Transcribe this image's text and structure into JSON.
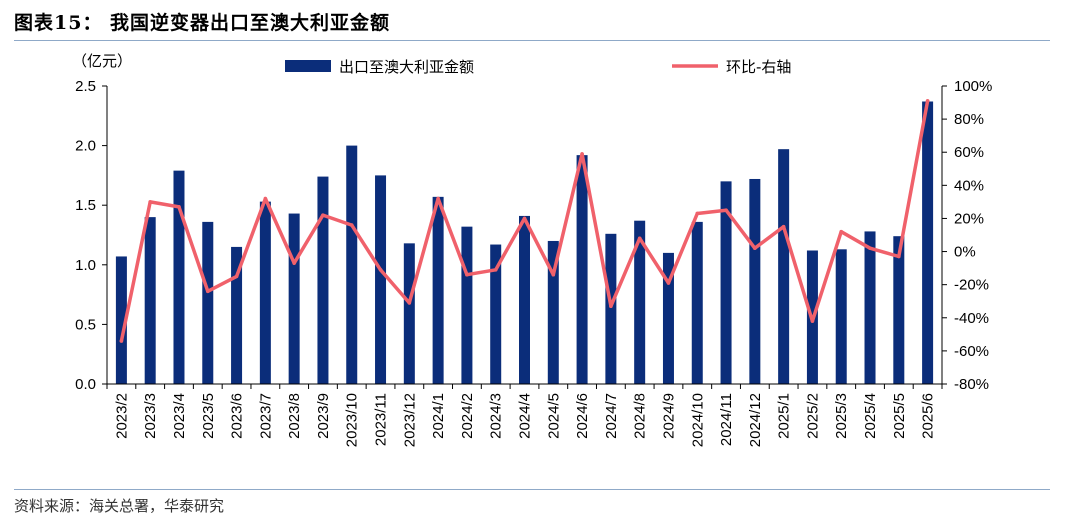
{
  "figure": {
    "title": "图表15：  我国逆变器出口至澳大利亚金额",
    "source": "资料来源：海关总署，华泰研究"
  },
  "colors": {
    "bar": "#0b2d7a",
    "line": "#f0616b",
    "axis": "#000000",
    "rule": "#8fa9c8"
  },
  "chart_data": {
    "type": "bar",
    "categories": [
      "2023/2",
      "2023/3",
      "2023/4",
      "2023/5",
      "2023/6",
      "2023/7",
      "2023/8",
      "2023/9",
      "2023/10",
      "2023/11",
      "2023/12",
      "2024/1",
      "2024/2",
      "2024/3",
      "2024/4",
      "2024/5",
      "2024/6",
      "2024/7",
      "2024/8",
      "2024/9",
      "2024/10",
      "2024/11",
      "2024/12",
      "2025/1",
      "2025/2",
      "2025/3",
      "2025/4",
      "2025/5",
      "2025/6"
    ],
    "series": [
      {
        "name": "出口至澳大利亚金额",
        "type": "bar",
        "axis": "left",
        "values": [
          1.07,
          1.4,
          1.79,
          1.36,
          1.15,
          1.53,
          1.43,
          1.74,
          2.0,
          1.75,
          1.18,
          1.57,
          1.32,
          1.17,
          1.41,
          1.2,
          1.92,
          1.26,
          1.37,
          1.1,
          1.36,
          1.7,
          1.72,
          1.97,
          1.12,
          1.13,
          1.28,
          1.24,
          2.37
        ]
      },
      {
        "name": "环比-右轴",
        "type": "line",
        "axis": "right",
        "values": [
          -54,
          30,
          27,
          -24,
          -15,
          32,
          -7,
          22,
          16,
          -11,
          -31,
          32,
          -14,
          -11,
          20,
          -14,
          59,
          -33,
          8,
          -19,
          23,
          25,
          2,
          15,
          -42,
          12,
          2,
          -3,
          91
        ]
      }
    ],
    "ylim": [
      0,
      2.5
    ],
    "y_ticks": [
      "2.5",
      "2.0",
      "1.5",
      "1.0",
      "0.5",
      "0.0"
    ],
    "y_unit": "（亿元）",
    "y2lim": [
      -80,
      100
    ],
    "y2_ticks": [
      "100%",
      "80%",
      "60%",
      "40%",
      "20%",
      "0%",
      "-20%",
      "-40%",
      "-60%",
      "-80%"
    ],
    "legend": "top",
    "grid": false
  }
}
